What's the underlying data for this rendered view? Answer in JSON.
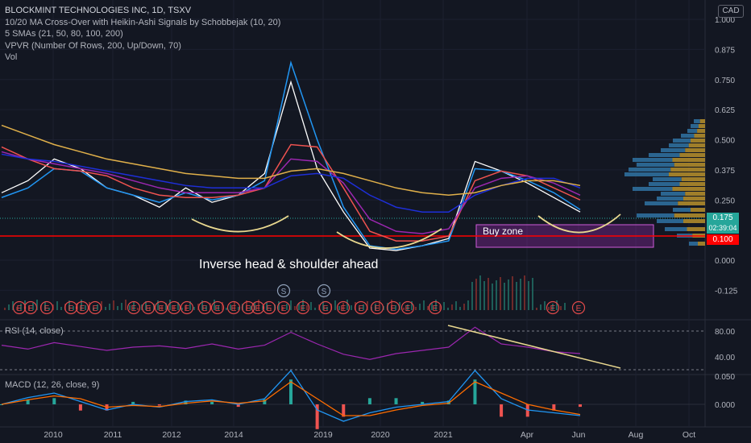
{
  "header": {
    "symbol": "BLOCKMINT TECHNOLOGIES INC, 1D, TSXV",
    "indicators": [
      "10/20 MA Cross-Over with Heikin-Ashi Signals by Schobbejak (10, 20)",
      "5 SMAs (21, 50, 80, 100, 200)",
      "VPVR (Number Of Rows, 200, Up/Down, 70)",
      "Vol"
    ],
    "currency": "CAD"
  },
  "rsi_label": "RSI (14, close)",
  "macd_label": "MACD (12, 26, close, 9)",
  "price_tags": [
    {
      "value": "0.175",
      "sub": "02:39:04",
      "color": "#26a69a"
    },
    {
      "value": "0.100",
      "color": "#ff0000"
    }
  ],
  "annotations": {
    "main": "Inverse head & shoulder ahead",
    "buy_zone": "Buy zone"
  },
  "event_marks": {
    "earnings_letter": "E",
    "split_letter": "S"
  },
  "chart_data": [
    {
      "type": "line",
      "pane": "price",
      "y_ticks": [
        "1.000",
        "0.875",
        "0.750",
        "0.625",
        "0.500",
        "0.375",
        "0.250",
        "0.000",
        "-0.125"
      ],
      "ylim": [
        -0.125,
        1.0
      ],
      "x_ticks": [
        "2010",
        "2011",
        "2012",
        "2014",
        "2019",
        "2020",
        "2021",
        "Apr",
        "Jun",
        "Aug",
        "Oct"
      ],
      "series": [
        {
          "values": [
            0.28,
            0.33,
            0.42,
            0.38,
            0.3,
            0.27,
            0.22,
            0.3,
            0.24,
            0.27,
            0.36,
            0.74,
            0.38,
            0.2,
            0.05,
            0.04,
            0.06,
            0.09,
            0.41,
            0.37,
            0.32,
            0.26,
            0.2
          ],
          "color": "#ffffff"
        },
        {
          "values": [
            0.26,
            0.3,
            0.38,
            0.37,
            0.3,
            0.27,
            0.24,
            0.28,
            0.25,
            0.27,
            0.33,
            0.82,
            0.5,
            0.22,
            0.06,
            0.045,
            0.06,
            0.08,
            0.38,
            0.37,
            0.33,
            0.28,
            0.21
          ],
          "color": "#2196f3"
        },
        {
          "values": [
            0.47,
            0.42,
            0.38,
            0.37,
            0.35,
            0.3,
            0.27,
            0.26,
            0.26,
            0.27,
            0.3,
            0.48,
            0.47,
            0.3,
            0.12,
            0.08,
            0.08,
            0.1,
            0.33,
            0.37,
            0.35,
            0.3,
            0.25
          ],
          "color": "#ef5350"
        },
        {
          "values": [
            0.45,
            0.42,
            0.4,
            0.38,
            0.36,
            0.33,
            0.3,
            0.28,
            0.28,
            0.28,
            0.3,
            0.42,
            0.41,
            0.32,
            0.17,
            0.12,
            0.11,
            0.13,
            0.3,
            0.34,
            0.35,
            0.32,
            0.27
          ],
          "color": "#9c27b0"
        },
        {
          "values": [
            0.44,
            0.42,
            0.41,
            0.39,
            0.37,
            0.35,
            0.33,
            0.31,
            0.3,
            0.3,
            0.3,
            0.35,
            0.36,
            0.34,
            0.27,
            0.22,
            0.2,
            0.2,
            0.27,
            0.31,
            0.34,
            0.34,
            0.3
          ],
          "color": "#1e2fd8"
        },
        {
          "values": [
            0.56,
            0.52,
            0.48,
            0.45,
            0.42,
            0.4,
            0.38,
            0.36,
            0.35,
            0.34,
            0.34,
            0.37,
            0.38,
            0.36,
            0.33,
            0.3,
            0.28,
            0.27,
            0.28,
            0.31,
            0.33,
            0.33,
            0.31
          ],
          "color": "#e0b04a"
        }
      ]
    },
    {
      "type": "line",
      "pane": "rsi",
      "y_ticks": [
        "80.00",
        "40.00"
      ],
      "series": [
        {
          "values": [
            58,
            52,
            62,
            56,
            50,
            55,
            57,
            53,
            60,
            52,
            58,
            78,
            60,
            44,
            36,
            45,
            50,
            55,
            86,
            60,
            55,
            48,
            45
          ],
          "color": "#9c27b0"
        }
      ]
    },
    {
      "type": "line",
      "pane": "macd",
      "y_ticks": [
        "0.050",
        "0.000"
      ],
      "series": [
        {
          "values": [
            0.0,
            0.012,
            0.02,
            0.005,
            -0.01,
            0.0,
            -0.005,
            0.005,
            0.008,
            0.0,
            0.01,
            0.06,
            -0.01,
            -0.03,
            -0.015,
            -0.005,
            0.0,
            0.005,
            0.06,
            0.01,
            -0.01,
            -0.015,
            -0.02
          ],
          "color": "#2196f3"
        },
        {
          "values": [
            0.0,
            0.008,
            0.015,
            0.01,
            -0.005,
            -0.002,
            -0.004,
            0.002,
            0.006,
            0.002,
            0.006,
            0.04,
            0.01,
            -0.02,
            -0.02,
            -0.01,
            -0.002,
            0.002,
            0.04,
            0.02,
            0.0,
            -0.01,
            -0.018
          ],
          "color": "#ff6d00"
        }
      ]
    }
  ]
}
